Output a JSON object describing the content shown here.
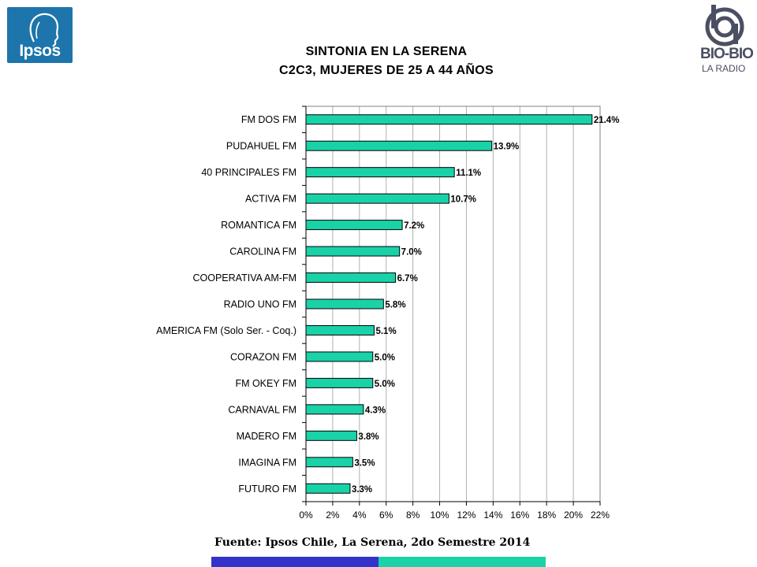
{
  "logos": {
    "ipsos": "Ipsos",
    "biobio_name": "BIO-BIO",
    "biobio_tagline": "LA RADIO"
  },
  "header": {
    "title_line1": "SINTONIA EN LA SERENA",
    "title_line2": "C2C3, MUJERES DE 25 A 44 AÑOS"
  },
  "footer": {
    "source": "Fuente: Ipsos Chile, La Serena, 2do Semestre 2014",
    "stripe_colors": [
      "#3333cc",
      "#1ad2a8"
    ]
  },
  "chart_data": {
    "type": "bar",
    "orientation": "horizontal",
    "categories": [
      "FM DOS FM",
      "PUDAHUEL FM",
      "40 PRINCIPALES FM",
      "ACTIVA  FM",
      "ROMANTICA FM",
      "CAROLINA FM",
      "COOPERATIVA AM-FM",
      "RADIO UNO FM",
      "AMERICA FM  (Solo Ser. - Coq.)",
      "CORAZON FM",
      "FM OKEY FM",
      "CARNAVAL FM",
      "MADERO FM",
      "IMAGINA FM",
      "FUTURO FM"
    ],
    "values": [
      21.4,
      13.9,
      11.1,
      10.7,
      7.2,
      7.0,
      6.7,
      5.8,
      5.1,
      5.0,
      5.0,
      4.3,
      3.8,
      3.5,
      3.3
    ],
    "data_labels": [
      "21.4%",
      "13.9%",
      "11.1%",
      "10.7%",
      "7.2%",
      "7.0%",
      "6.7%",
      "5.8%",
      "5.1%",
      "5.0%",
      "5.0%",
      "4.3%",
      "3.8%",
      "3.5%",
      "3.3%"
    ],
    "xlim": [
      0,
      22
    ],
    "x_ticks": [
      0,
      2,
      4,
      6,
      8,
      10,
      12,
      14,
      16,
      18,
      20,
      22
    ],
    "x_tick_labels": [
      "0%",
      "2%",
      "4%",
      "6%",
      "8%",
      "10%",
      "12%",
      "14%",
      "16%",
      "18%",
      "20%",
      "22%"
    ],
    "grid": "vertical",
    "bar_color": "#1ad2a8",
    "title": "SINTONIA EN LA SERENA C2C3, MUJERES DE 25 A 44 AÑOS",
    "xlabel": "",
    "ylabel": ""
  }
}
